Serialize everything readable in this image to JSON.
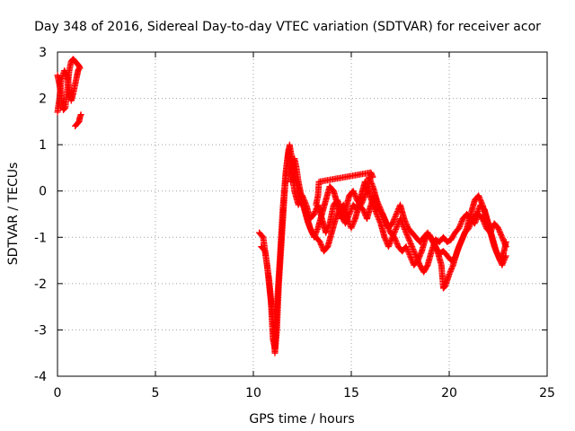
{
  "chart_data": {
    "type": "scatter",
    "title": "Day 348 of 2016, Sidereal Day-to-day VTEC variation (SDTVAR) for receiver acor",
    "xlabel": "GPS time / hours",
    "ylabel": "SDTVAR / TECUs",
    "xlim": [
      0,
      25
    ],
    "ylim": [
      -4,
      3
    ],
    "xticks": [
      "0",
      "5",
      "10",
      "15",
      "20",
      "25"
    ],
    "yticks": [
      "-4",
      "-3",
      "-2",
      "-1",
      "0",
      "1",
      "2",
      "3"
    ],
    "grid": true,
    "marker": "+",
    "color": "#ff0000",
    "series": [
      {
        "name": "seg1",
        "points": [
          [
            0.0,
            1.7
          ],
          [
            0.1,
            2.0
          ],
          [
            0.2,
            2.4
          ],
          [
            0.35,
            2.6
          ],
          [
            0.5,
            2.5
          ],
          [
            0.6,
            2.2
          ],
          [
            0.7,
            1.95
          ],
          [
            0.8,
            2.1
          ],
          [
            0.9,
            2.3
          ],
          [
            1.0,
            2.5
          ],
          [
            1.05,
            2.6
          ],
          [
            1.1,
            2.65
          ]
        ]
      },
      {
        "name": "seg2",
        "points": [
          [
            0.0,
            2.5
          ],
          [
            0.1,
            2.3
          ],
          [
            0.2,
            2.0
          ],
          [
            0.3,
            1.75
          ],
          [
            0.4,
            1.8
          ],
          [
            0.5,
            2.2
          ],
          [
            0.6,
            2.6
          ],
          [
            0.7,
            2.8
          ],
          [
            0.8,
            2.85
          ],
          [
            0.9,
            2.8
          ],
          [
            1.0,
            2.75
          ],
          [
            1.1,
            2.7
          ],
          [
            1.15,
            2.65
          ]
        ]
      },
      {
        "name": "seg3",
        "points": [
          [
            0.9,
            1.4
          ],
          [
            1.0,
            1.45
          ],
          [
            1.1,
            1.5
          ],
          [
            1.15,
            1.6
          ],
          [
            1.2,
            1.65
          ]
        ]
      },
      {
        "name": "seg4",
        "points": [
          [
            10.3,
            -0.9
          ],
          [
            10.5,
            -1.0
          ],
          [
            10.7,
            -1.6
          ],
          [
            10.9,
            -2.4
          ],
          [
            11.0,
            -3.2
          ],
          [
            11.1,
            -3.4
          ],
          [
            11.2,
            -2.5
          ],
          [
            11.35,
            -1.5
          ],
          [
            11.5,
            -0.4
          ],
          [
            11.65,
            0.4
          ],
          [
            11.8,
            0.9
          ],
          [
            11.9,
            0.6
          ],
          [
            12.0,
            0.3
          ],
          [
            12.1,
            0.0
          ],
          [
            12.3,
            -0.3
          ],
          [
            12.5,
            -0.1
          ],
          [
            12.7,
            -0.3
          ],
          [
            12.9,
            -0.6
          ],
          [
            13.1,
            -0.5
          ],
          [
            13.3,
            -0.3
          ],
          [
            13.5,
            -0.6
          ],
          [
            13.7,
            -0.9
          ],
          [
            13.9,
            -0.7
          ],
          [
            14.1,
            -0.3
          ],
          [
            14.3,
            -0.2
          ],
          [
            14.5,
            -0.5
          ],
          [
            14.7,
            -0.7
          ],
          [
            14.9,
            -0.5
          ],
          [
            15.1,
            -0.3
          ],
          [
            15.3,
            -0.4
          ],
          [
            15.5,
            -0.1
          ],
          [
            15.7,
            0.2
          ],
          [
            15.9,
            0.0
          ],
          [
            16.1,
            -0.3
          ],
          [
            16.3,
            -0.5
          ],
          [
            16.5,
            -0.7
          ],
          [
            16.7,
            -1.0
          ],
          [
            16.9,
            -1.2
          ],
          [
            17.1,
            -1.0
          ],
          [
            17.3,
            -0.8
          ],
          [
            17.5,
            -0.6
          ],
          [
            17.7,
            -0.8
          ],
          [
            17.9,
            -1.0
          ],
          [
            18.1,
            -1.2
          ],
          [
            18.3,
            -1.4
          ],
          [
            18.5,
            -1.6
          ],
          [
            18.7,
            -1.75
          ],
          [
            18.9,
            -1.6
          ],
          [
            19.1,
            -1.3
          ],
          [
            19.3,
            -1.05
          ],
          [
            19.5,
            -1.1
          ],
          [
            19.7,
            -1.0
          ],
          [
            19.9,
            -1.1
          ],
          [
            20.1,
            -1.05
          ],
          [
            20.3,
            -0.9
          ],
          [
            20.5,
            -0.8
          ],
          [
            20.7,
            -0.6
          ],
          [
            20.9,
            -0.5
          ],
          [
            21.1,
            -0.6
          ],
          [
            21.3,
            -0.7
          ],
          [
            21.5,
            -0.5
          ],
          [
            21.7,
            -0.6
          ],
          [
            21.9,
            -0.8
          ],
          [
            22.1,
            -0.9
          ],
          [
            22.3,
            -0.7
          ],
          [
            22.5,
            -0.8
          ],
          [
            22.7,
            -1.0
          ],
          [
            22.9,
            -1.2
          ]
        ]
      },
      {
        "name": "seg5",
        "points": [
          [
            10.4,
            -1.2
          ],
          [
            10.6,
            -1.3
          ],
          [
            10.8,
            -1.9
          ],
          [
            11.0,
            -2.8
          ],
          [
            11.1,
            -3.5
          ],
          [
            11.2,
            -3.0
          ],
          [
            11.3,
            -2.0
          ],
          [
            11.45,
            -1.0
          ],
          [
            11.6,
            0.0
          ],
          [
            11.75,
            0.7
          ],
          [
            11.85,
            1.0
          ],
          [
            12.0,
            0.6
          ],
          [
            12.2,
            0.2
          ],
          [
            12.4,
            -0.1
          ],
          [
            12.6,
            -0.4
          ],
          [
            12.8,
            -0.7
          ],
          [
            13.0,
            -0.9
          ],
          [
            13.2,
            -1.0
          ],
          [
            13.4,
            -1.1
          ],
          [
            13.6,
            -1.3
          ],
          [
            13.8,
            -1.2
          ],
          [
            14.0,
            -0.9
          ],
          [
            14.2,
            -0.6
          ],
          [
            14.4,
            -0.4
          ],
          [
            14.6,
            -0.3
          ],
          [
            14.8,
            -0.6
          ],
          [
            15.0,
            -0.8
          ],
          [
            15.2,
            -0.6
          ],
          [
            15.4,
            -0.3
          ],
          [
            15.6,
            -0.4
          ],
          [
            15.8,
            -0.6
          ],
          [
            16.0,
            -0.3
          ],
          [
            16.2,
            -0.1
          ],
          [
            16.4,
            -0.4
          ],
          [
            16.6,
            -0.5
          ],
          [
            16.8,
            -0.7
          ],
          [
            17.0,
            -0.9
          ],
          [
            17.2,
            -1.0
          ],
          [
            17.4,
            -1.2
          ],
          [
            17.6,
            -1.3
          ],
          [
            17.8,
            -1.2
          ],
          [
            18.0,
            -1.4
          ],
          [
            18.2,
            -1.6
          ],
          [
            18.4,
            -1.5
          ],
          [
            18.6,
            -1.3
          ],
          [
            18.8,
            -1.0
          ],
          [
            19.0,
            -0.95
          ],
          [
            19.2,
            -1.1
          ],
          [
            19.4,
            -1.3
          ],
          [
            19.6,
            -1.6
          ],
          [
            19.7,
            -2.1
          ],
          [
            19.8,
            -2.05
          ],
          [
            20.0,
            -1.8
          ],
          [
            20.2,
            -1.6
          ],
          [
            20.4,
            -1.3
          ],
          [
            20.6,
            -1.1
          ],
          [
            20.8,
            -0.9
          ],
          [
            21.0,
            -0.8
          ],
          [
            21.2,
            -0.6
          ],
          [
            21.4,
            -0.5
          ],
          [
            21.6,
            -0.3
          ],
          [
            21.8,
            -0.4
          ],
          [
            22.0,
            -0.7
          ],
          [
            22.2,
            -1.0
          ],
          [
            22.4,
            -1.3
          ],
          [
            22.6,
            -1.5
          ],
          [
            22.8,
            -1.3
          ],
          [
            22.9,
            -1.1
          ]
        ]
      },
      {
        "name": "seg6",
        "points": [
          [
            11.9,
            0.2
          ],
          [
            12.0,
            0.5
          ],
          [
            12.1,
            0.7
          ],
          [
            12.2,
            0.5
          ],
          [
            12.3,
            0.2
          ],
          [
            12.5,
            -0.2
          ],
          [
            12.7,
            -0.5
          ],
          [
            12.9,
            -0.8
          ],
          [
            13.1,
            -1.0
          ],
          [
            13.3,
            -0.8
          ],
          [
            13.5,
            -0.5
          ],
          [
            13.7,
            -0.2
          ],
          [
            13.9,
            0.1
          ],
          [
            14.1,
            0.0
          ],
          [
            14.3,
            -0.3
          ],
          [
            14.5,
            -0.6
          ],
          [
            14.7,
            -0.4
          ],
          [
            14.9,
            -0.1
          ],
          [
            15.1,
            0.0
          ],
          [
            15.3,
            -0.2
          ],
          [
            15.5,
            -0.3
          ],
          [
            15.7,
            -0.1
          ],
          [
            15.9,
            0.3
          ],
          [
            16.1,
            0.1
          ],
          [
            16.3,
            -0.2
          ],
          [
            16.5,
            -0.4
          ],
          [
            16.7,
            -0.6
          ],
          [
            16.9,
            -0.8
          ],
          [
            17.1,
            -0.7
          ],
          [
            17.3,
            -0.5
          ],
          [
            17.5,
            -0.3
          ],
          [
            17.7,
            -0.6
          ],
          [
            17.9,
            -0.8
          ],
          [
            18.1,
            -0.9
          ],
          [
            18.3,
            -1.0
          ],
          [
            18.5,
            -1.1
          ],
          [
            18.7,
            -1.0
          ],
          [
            18.9,
            -0.9
          ],
          [
            19.1,
            -1.05
          ],
          [
            19.3,
            -1.2
          ],
          [
            19.5,
            -1.35
          ],
          [
            19.7,
            -1.3
          ],
          [
            19.9,
            -1.4
          ],
          [
            20.1,
            -1.5
          ],
          [
            20.3,
            -1.45
          ],
          [
            20.5,
            -1.2
          ],
          [
            20.7,
            -1.0
          ],
          [
            20.9,
            -0.8
          ],
          [
            21.1,
            -0.5
          ],
          [
            21.3,
            -0.2
          ],
          [
            21.5,
            -0.1
          ],
          [
            21.7,
            -0.3
          ],
          [
            21.9,
            -0.6
          ],
          [
            22.1,
            -0.9
          ],
          [
            22.3,
            -1.2
          ],
          [
            22.5,
            -1.4
          ],
          [
            22.7,
            -1.6
          ],
          [
            22.9,
            -1.4
          ]
        ]
      },
      {
        "name": "seg7",
        "points": [
          [
            13.2,
            -0.3
          ],
          [
            13.3,
            -0.1
          ],
          [
            13.35,
            0.2
          ],
          [
            16.0,
            0.4
          ],
          [
            16.1,
            0.3
          ]
        ]
      }
    ]
  }
}
